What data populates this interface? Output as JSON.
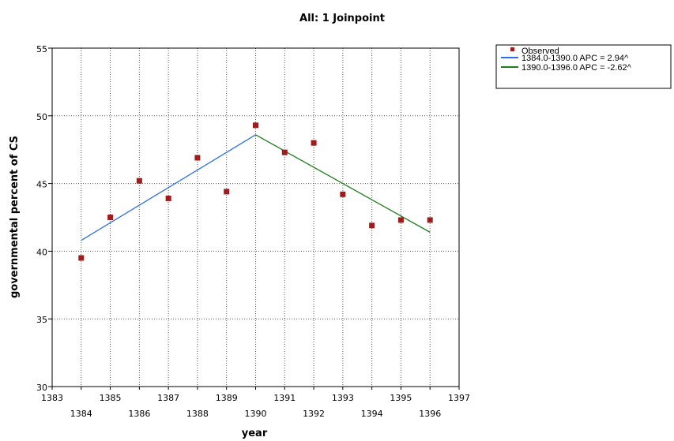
{
  "chart_data": {
    "type": "line",
    "title": "All: 1 Joinpoint",
    "xlabel": "year",
    "ylabel": "governmental percent of CS",
    "xlim": [
      1383,
      1397
    ],
    "ylim": [
      30,
      55
    ],
    "x_ticks_top_row": [
      1383,
      1385,
      1387,
      1389,
      1391,
      1393,
      1395,
      1397
    ],
    "x_ticks_bottom_row": [
      1384,
      1386,
      1388,
      1390,
      1392,
      1394,
      1396
    ],
    "y_ticks": [
      30,
      35,
      40,
      45,
      50,
      55
    ],
    "grid": true,
    "legend_position": "top-right",
    "observed": {
      "name": "Observed",
      "color": "#a01c1c",
      "points": [
        {
          "x": 1384,
          "y": 39.5
        },
        {
          "x": 1385,
          "y": 42.5
        },
        {
          "x": 1386,
          "y": 45.2
        },
        {
          "x": 1387,
          "y": 43.9
        },
        {
          "x": 1388,
          "y": 46.9
        },
        {
          "x": 1389,
          "y": 44.4
        },
        {
          "x": 1390,
          "y": 49.3
        },
        {
          "x": 1391,
          "y": 47.3
        },
        {
          "x": 1392,
          "y": 48.0
        },
        {
          "x": 1393,
          "y": 44.2
        },
        {
          "x": 1394,
          "y": 41.9
        },
        {
          "x": 1395,
          "y": 42.3
        },
        {
          "x": 1396,
          "y": 42.3
        }
      ]
    },
    "series": [
      {
        "name": "1384.0-1390.0 APC =  2.94^",
        "color": "#2a6fe8",
        "points": [
          {
            "x": 1384,
            "y": 40.8
          },
          {
            "x": 1390,
            "y": 48.6
          }
        ]
      },
      {
        "name": "1390.0-1396.0 APC = -2.62^",
        "color": "#1e7d1e",
        "points": [
          {
            "x": 1390,
            "y": 48.6
          },
          {
            "x": 1396,
            "y": 41.4
          }
        ]
      }
    ]
  }
}
